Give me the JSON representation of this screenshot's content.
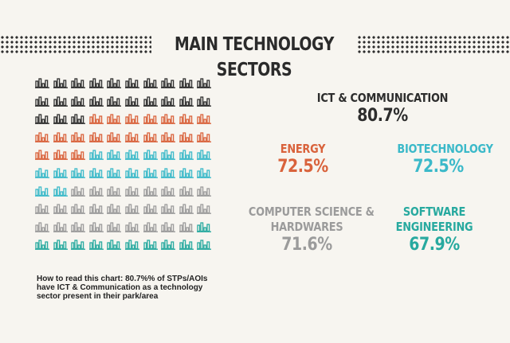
{
  "header": {
    "title": "MAIN TECHNOLOGY SECTORS"
  },
  "colors": {
    "ict": "#2d2d2d",
    "energy": "#d9623b",
    "biotech": "#3bb9c9",
    "cs": "#9b9b9b",
    "software": "#27a99f",
    "background": "#f7f5f0"
  },
  "icon": "bar-chart-icon",
  "chart_data": {
    "type": "pictograph",
    "grid": {
      "rows": 10,
      "cols": 10
    },
    "series": [
      {
        "name": "ICT & COMMUNICATION",
        "value": 80.7,
        "value_label": "80.7%",
        "color": "#2d2d2d"
      },
      {
        "name": "ENERGY",
        "value": 72.5,
        "value_label": "72.5%",
        "color": "#d9623b"
      },
      {
        "name": "BIOTECHNOLOGY",
        "value": 72.5,
        "value_label": "72.5%",
        "color": "#3bb9c9"
      },
      {
        "name": "COMPUTER SCIENCE & HARDWARES",
        "label_lines": [
          "COMPUTER SCIENCE &",
          "HARDWARES"
        ],
        "value": 71.6,
        "value_label": "71.6%",
        "color": "#9b9b9b"
      },
      {
        "name": "SOFTWARE ENGINEERING",
        "label_lines": [
          "SOFTWARE",
          "ENGINEERING"
        ],
        "value": 67.9,
        "value_label": "67.9%",
        "color": "#27a99f"
      }
    ],
    "row_colors": [
      "#2d2d2d",
      "#2d2d2d",
      "#2d2d2d",
      "#d9623b",
      "#d9623b",
      "#3bb9c9",
      "#3bb9c9",
      "#9b9b9b",
      "#9b9b9b",
      "#27a99f"
    ],
    "row_split": [
      {
        "row": 2,
        "first": 3,
        "first_color": "#2d2d2d",
        "rest_color": "#d9623b"
      },
      {
        "row": 4,
        "first": 3,
        "first_color": "#d9623b",
        "rest_color": "#3bb9c9"
      },
      {
        "row": 6,
        "first": 2,
        "first_color": "#3bb9c9",
        "rest_color": "#9b9b9b"
      },
      {
        "row": 8,
        "first": 9,
        "first_color": "#9b9b9b",
        "rest_color": "#27a99f"
      }
    ],
    "note": "How to read this chart: 80.7%% of STPs/AOIs have ICT & Communication as a technology sector present in their park/area"
  }
}
